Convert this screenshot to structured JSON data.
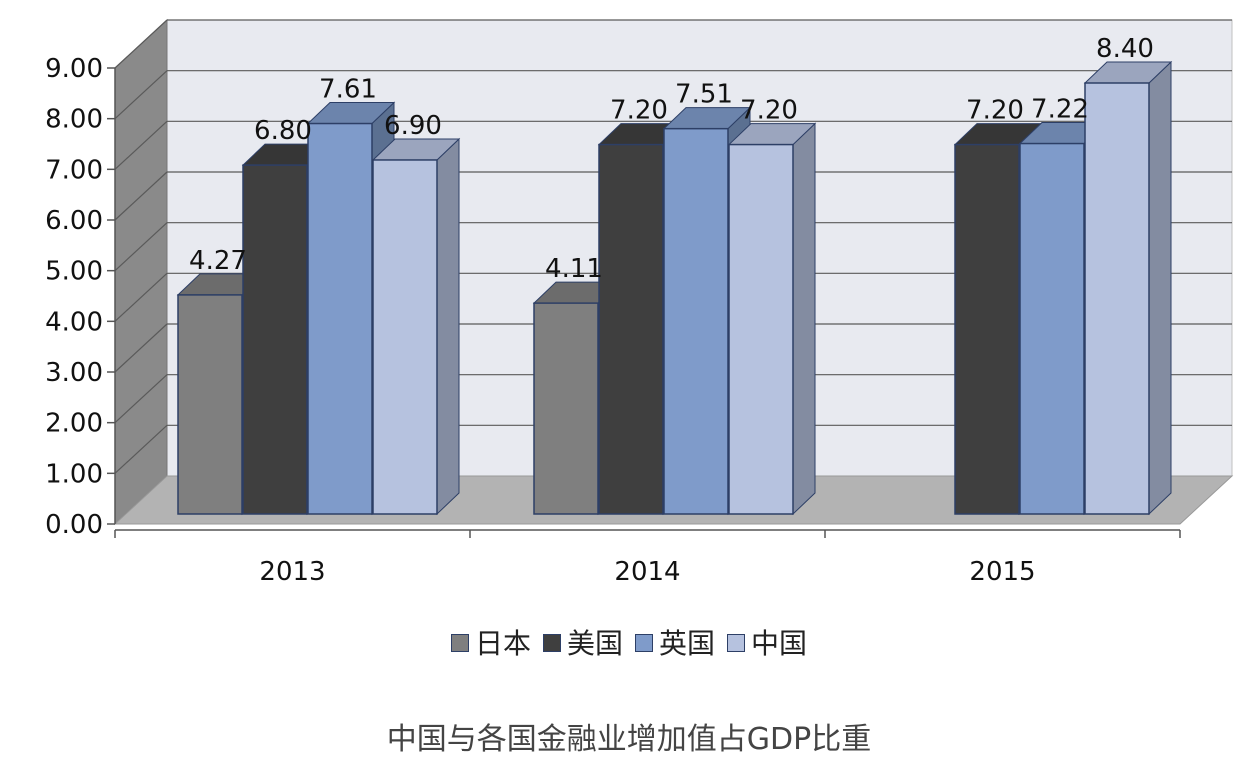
{
  "chart_data": {
    "type": "bar",
    "categories": [
      "2013",
      "2014",
      "2015"
    ],
    "series": [
      {
        "name": "日本",
        "values": [
          4.27,
          4.11,
          null
        ],
        "color": "#7f7f7f"
      },
      {
        "name": "美国",
        "values": [
          6.8,
          7.2,
          7.2
        ],
        "color": "#3f3f3f"
      },
      {
        "name": "英国",
        "values": [
          7.61,
          7.51,
          7.22
        ],
        "color": "#7f9bca"
      },
      {
        "name": "中国",
        "values": [
          6.9,
          7.2,
          8.4
        ],
        "color": "#b6c2df"
      }
    ],
    "value_labels": [
      [
        "4.27",
        "6.80",
        "7.61",
        "6.90"
      ],
      [
        "4.11",
        "7.20",
        "7.51",
        "7.20"
      ],
      [
        "",
        "7.20",
        "7.22",
        "8.40"
      ]
    ],
    "y_ticks": [
      "0.00",
      "1.00",
      "2.00",
      "3.00",
      "4.00",
      "5.00",
      "6.00",
      "7.00",
      "8.00",
      "9.00"
    ],
    "ylim": [
      0,
      9
    ],
    "grid": true,
    "legend_position": "bottom",
    "style": "3d-clustered-column"
  },
  "caption": "中国与各国金融业增加值占GDP比重"
}
